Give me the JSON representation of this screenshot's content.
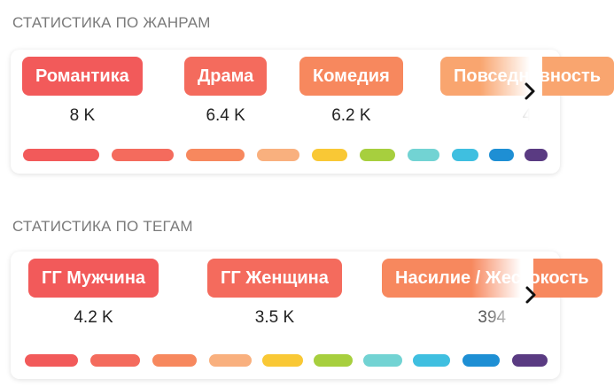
{
  "genres": {
    "title": "СТАТИСТИКА ПО ЖАНРАМ",
    "items": [
      {
        "label": "Романтика",
        "count": "8 K",
        "color": "#f25a5a"
      },
      {
        "label": "Драма",
        "count": "6.4 K",
        "color": "#f46b5d"
      },
      {
        "label": "Комедия",
        "count": "6.2 K",
        "color": "#f7885e"
      },
      {
        "label": "Повседневность",
        "count": "4",
        "color": "#f9a56f"
      }
    ],
    "palette": [
      "#f25a5a",
      "#f46b5d",
      "#f7885e",
      "#f9b07e",
      "#f9c835",
      "#a7cf3e",
      "#72d3d3",
      "#3fbfe0",
      "#1e8fd4",
      "#5a3b82"
    ],
    "next_icon": "chevron-right-icon"
  },
  "tags": {
    "title": "СТАТИСТИКА ПО ТЕГАМ",
    "items": [
      {
        "label": "ГГ Мужчина",
        "count": "4.2 K",
        "color": "#f25a5a"
      },
      {
        "label": "ГГ Женщина",
        "count": "3.5 K",
        "color": "#f46b5d"
      },
      {
        "label": "Насилие / Жестокость",
        "count": "394",
        "color": "#f7885e"
      }
    ],
    "palette": [
      "#f25a5a",
      "#f46b5d",
      "#f7885e",
      "#f9b07e",
      "#f9c835",
      "#a7cf3e",
      "#72d3d3",
      "#3fbfe0",
      "#1e8fd4",
      "#5a3b82"
    ],
    "next_icon": "chevron-right-icon"
  }
}
